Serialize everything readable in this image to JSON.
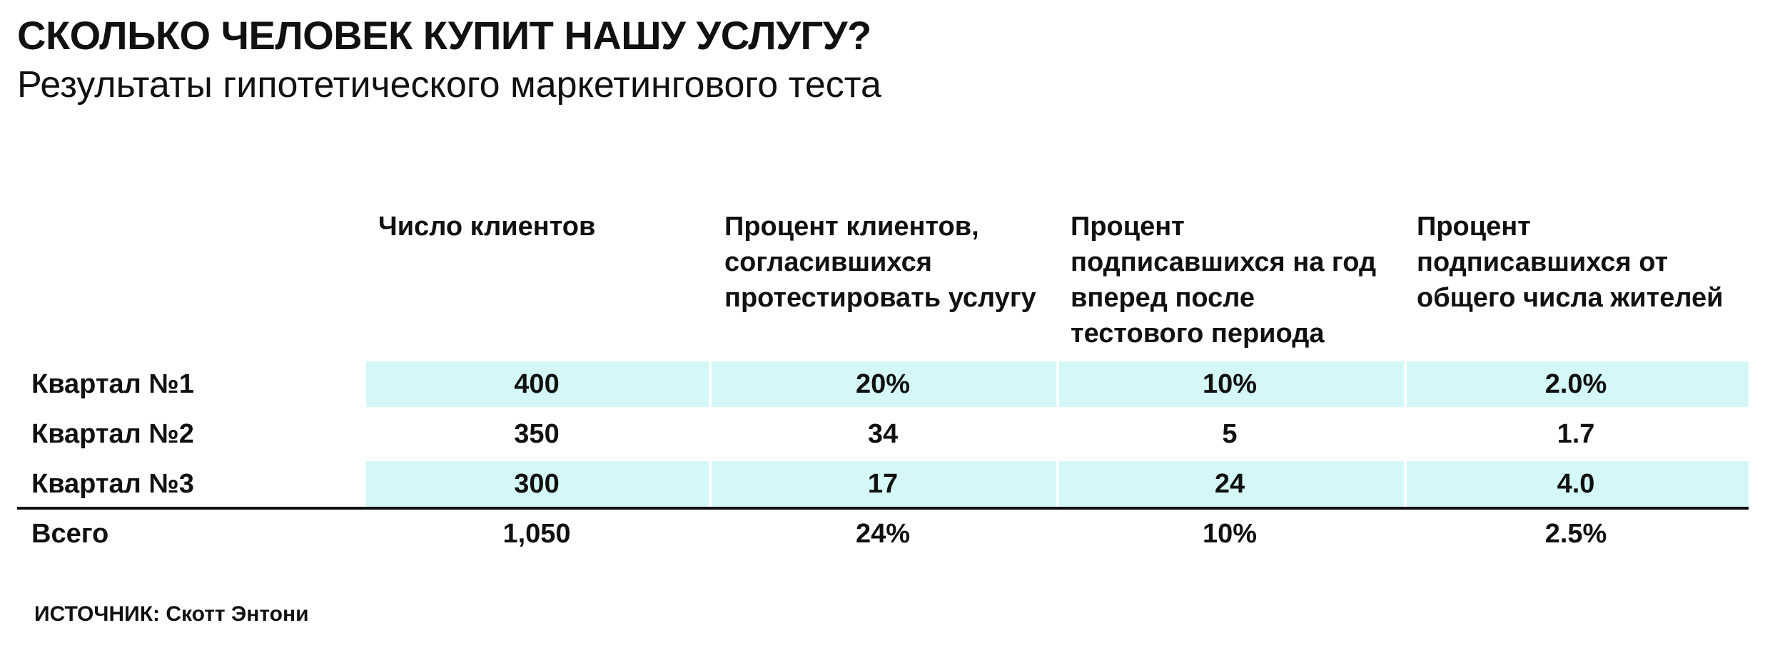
{
  "title": "СКОЛЬКО ЧЕЛОВЕК КУПИТ НАШУ УСЛУГУ?",
  "subtitle": "Результаты гипотетического маркетингового теста",
  "source": "ИСТОЧНИК: Скотт Энтони",
  "colors": {
    "band": "#d4f7f7",
    "text": "#111111",
    "rule": "#111111"
  },
  "chart_data": {
    "type": "table",
    "columns": [
      "Число клиентов",
      "Процент клиентов, согласившихся протестировать услугу",
      "Процент подписавшихся на год вперед после тестового периода",
      "Процент подписавшихся от общего числа жителей"
    ],
    "rows": [
      {
        "label": "Квартал №1",
        "values": [
          "400",
          "20%",
          "10%",
          "2.0%"
        ],
        "shaded": true
      },
      {
        "label": "Квартал №2",
        "values": [
          "350",
          "34",
          "5",
          "1.7"
        ],
        "shaded": false
      },
      {
        "label": "Квартал №3",
        "values": [
          "300",
          "17",
          "24",
          "4.0"
        ],
        "shaded": true
      }
    ],
    "total": {
      "label": "Всего",
      "values": [
        "1,050",
        "24%",
        "10%",
        "2.5%"
      ]
    }
  }
}
